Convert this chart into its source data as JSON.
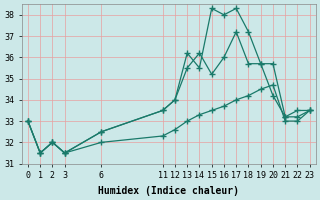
{
  "xlabel": "Humidex (Indice chaleur)",
  "bg_color": "#cce8e8",
  "grid_color": "#e8a0a0",
  "line_color": "#1a7a6a",
  "hours": [
    0,
    1,
    2,
    3,
    6,
    11,
    12,
    13,
    14,
    15,
    16,
    17,
    18,
    19,
    20,
    21,
    22,
    23
  ],
  "line1": [
    33.0,
    31.5,
    32.0,
    31.5,
    32.5,
    33.5,
    34.0,
    36.2,
    35.5,
    38.3,
    38.0,
    38.3,
    37.2,
    35.7,
    34.2,
    33.2,
    33.5,
    33.5
  ],
  "line2": [
    33.0,
    31.5,
    32.0,
    31.5,
    32.5,
    33.5,
    34.0,
    35.5,
    36.2,
    35.2,
    36.0,
    37.2,
    35.7,
    35.7,
    35.7,
    33.2,
    33.2,
    33.5
  ],
  "line3": [
    33.0,
    31.5,
    32.0,
    31.5,
    32.0,
    32.3,
    32.6,
    33.0,
    33.3,
    33.5,
    33.7,
    34.0,
    34.2,
    34.5,
    34.7,
    33.0,
    33.0,
    33.5
  ],
  "ylim": [
    31,
    38.5
  ],
  "xlim": [
    -0.5,
    23.5
  ],
  "xticks": [
    0,
    1,
    2,
    3,
    6,
    11,
    12,
    13,
    14,
    15,
    16,
    17,
    18,
    19,
    20,
    21,
    22,
    23
  ],
  "yticks": [
    31,
    32,
    33,
    34,
    35,
    36,
    37,
    38
  ],
  "tick_fontsize": 6,
  "xlabel_fontsize": 7
}
